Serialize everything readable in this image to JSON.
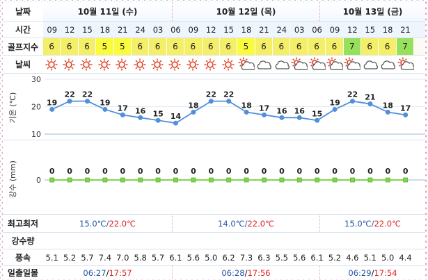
{
  "labels": {
    "date": "날짜",
    "time": "시간",
    "golf": "골프지수",
    "weather": "날씨",
    "temp_axis": "기온 (℃)",
    "rain_axis": "강수 (mm)",
    "minmax": "최고최저",
    "rain": "강수량",
    "wind": "풍속",
    "sun": "일출일몰"
  },
  "days": [
    {
      "date": "10월 11일 (수)",
      "min": "15.0℃",
      "max": "22.0℃",
      "sunrise": "06:27",
      "sunset": "17:57"
    },
    {
      "date": "10월 12일 (목)",
      "min": "14.0℃",
      "max": "22.0℃",
      "sunrise": "06:28",
      "sunset": "17:56"
    },
    {
      "date": "10월 13일 (금)",
      "min": "15.0℃",
      "max": "22.0℃",
      "sunrise": "06:29",
      "sunset": "17:54"
    }
  ],
  "slash": "/",
  "hours": [
    "09",
    "12",
    "15",
    "18",
    "21",
    "24",
    "03",
    "06",
    "09",
    "12",
    "15",
    "18",
    "21",
    "24",
    "03",
    "06",
    "09",
    "12",
    "15",
    "18",
    "21"
  ],
  "golf_index": [
    "6",
    "6",
    "6",
    "5",
    "5",
    "6",
    "6",
    "6",
    "6",
    "6",
    "6",
    "5",
    "6",
    "6",
    "6",
    "6",
    "6",
    "7",
    "6",
    "6",
    "7"
  ],
  "weather_icons": [
    "sun",
    "sun",
    "sun",
    "sun",
    "sun",
    "sun",
    "sun",
    "sun",
    "sun",
    "sun",
    "sun",
    "sun-cloud",
    "cloud",
    "cloud",
    "sun-cloud",
    "sun-cloud",
    "sun-cloud",
    "sun-cloud",
    "cloud",
    "cloud",
    "sun-cloud"
  ],
  "wind": [
    "5.1",
    "5.2",
    "5.7",
    "7.4",
    "7.0",
    "5.8",
    "5.7",
    "6.1",
    "5.6",
    "5.0",
    "6.2",
    "7.3",
    "6.3",
    "5.5",
    "5.6",
    "6.1",
    "5.2",
    "4.6",
    "5.1",
    "5.0",
    "4.4"
  ],
  "colors": {
    "temp_line": "#4f8fdc",
    "rain_line": "#7ed64d",
    "rain_marker": "#7ed64d",
    "golf5": "#fbfb3e",
    "golf6": "#f5ee68",
    "golf7": "#97e05b"
  },
  "chart_data": [
    {
      "type": "line",
      "ylabel": "기온 (℃)",
      "yticks": [
        10,
        20,
        30
      ],
      "ylim": [
        10,
        30
      ],
      "categories": [
        "09",
        "12",
        "15",
        "18",
        "21",
        "24",
        "03",
        "06",
        "09",
        "12",
        "15",
        "18",
        "21",
        "24",
        "03",
        "06",
        "09",
        "12",
        "15",
        "18",
        "21"
      ],
      "values": [
        19,
        22,
        22,
        19,
        17,
        16,
        15,
        14,
        18,
        22,
        22,
        18,
        17,
        16,
        16,
        15,
        19,
        22,
        21,
        18,
        17
      ],
      "grid": true
    },
    {
      "type": "line",
      "ylabel": "강수 (mm)",
      "yticks": [
        0
      ],
      "categories": [
        "09",
        "12",
        "15",
        "18",
        "21",
        "24",
        "03",
        "06",
        "09",
        "12",
        "15",
        "18",
        "21",
        "24",
        "03",
        "06",
        "09",
        "12",
        "15",
        "18",
        "21"
      ],
      "values": [
        0,
        0,
        0,
        0,
        0,
        0,
        0,
        0,
        0,
        0,
        0,
        0,
        0,
        0,
        0,
        0,
        0,
        0,
        0,
        0,
        0
      ]
    }
  ]
}
